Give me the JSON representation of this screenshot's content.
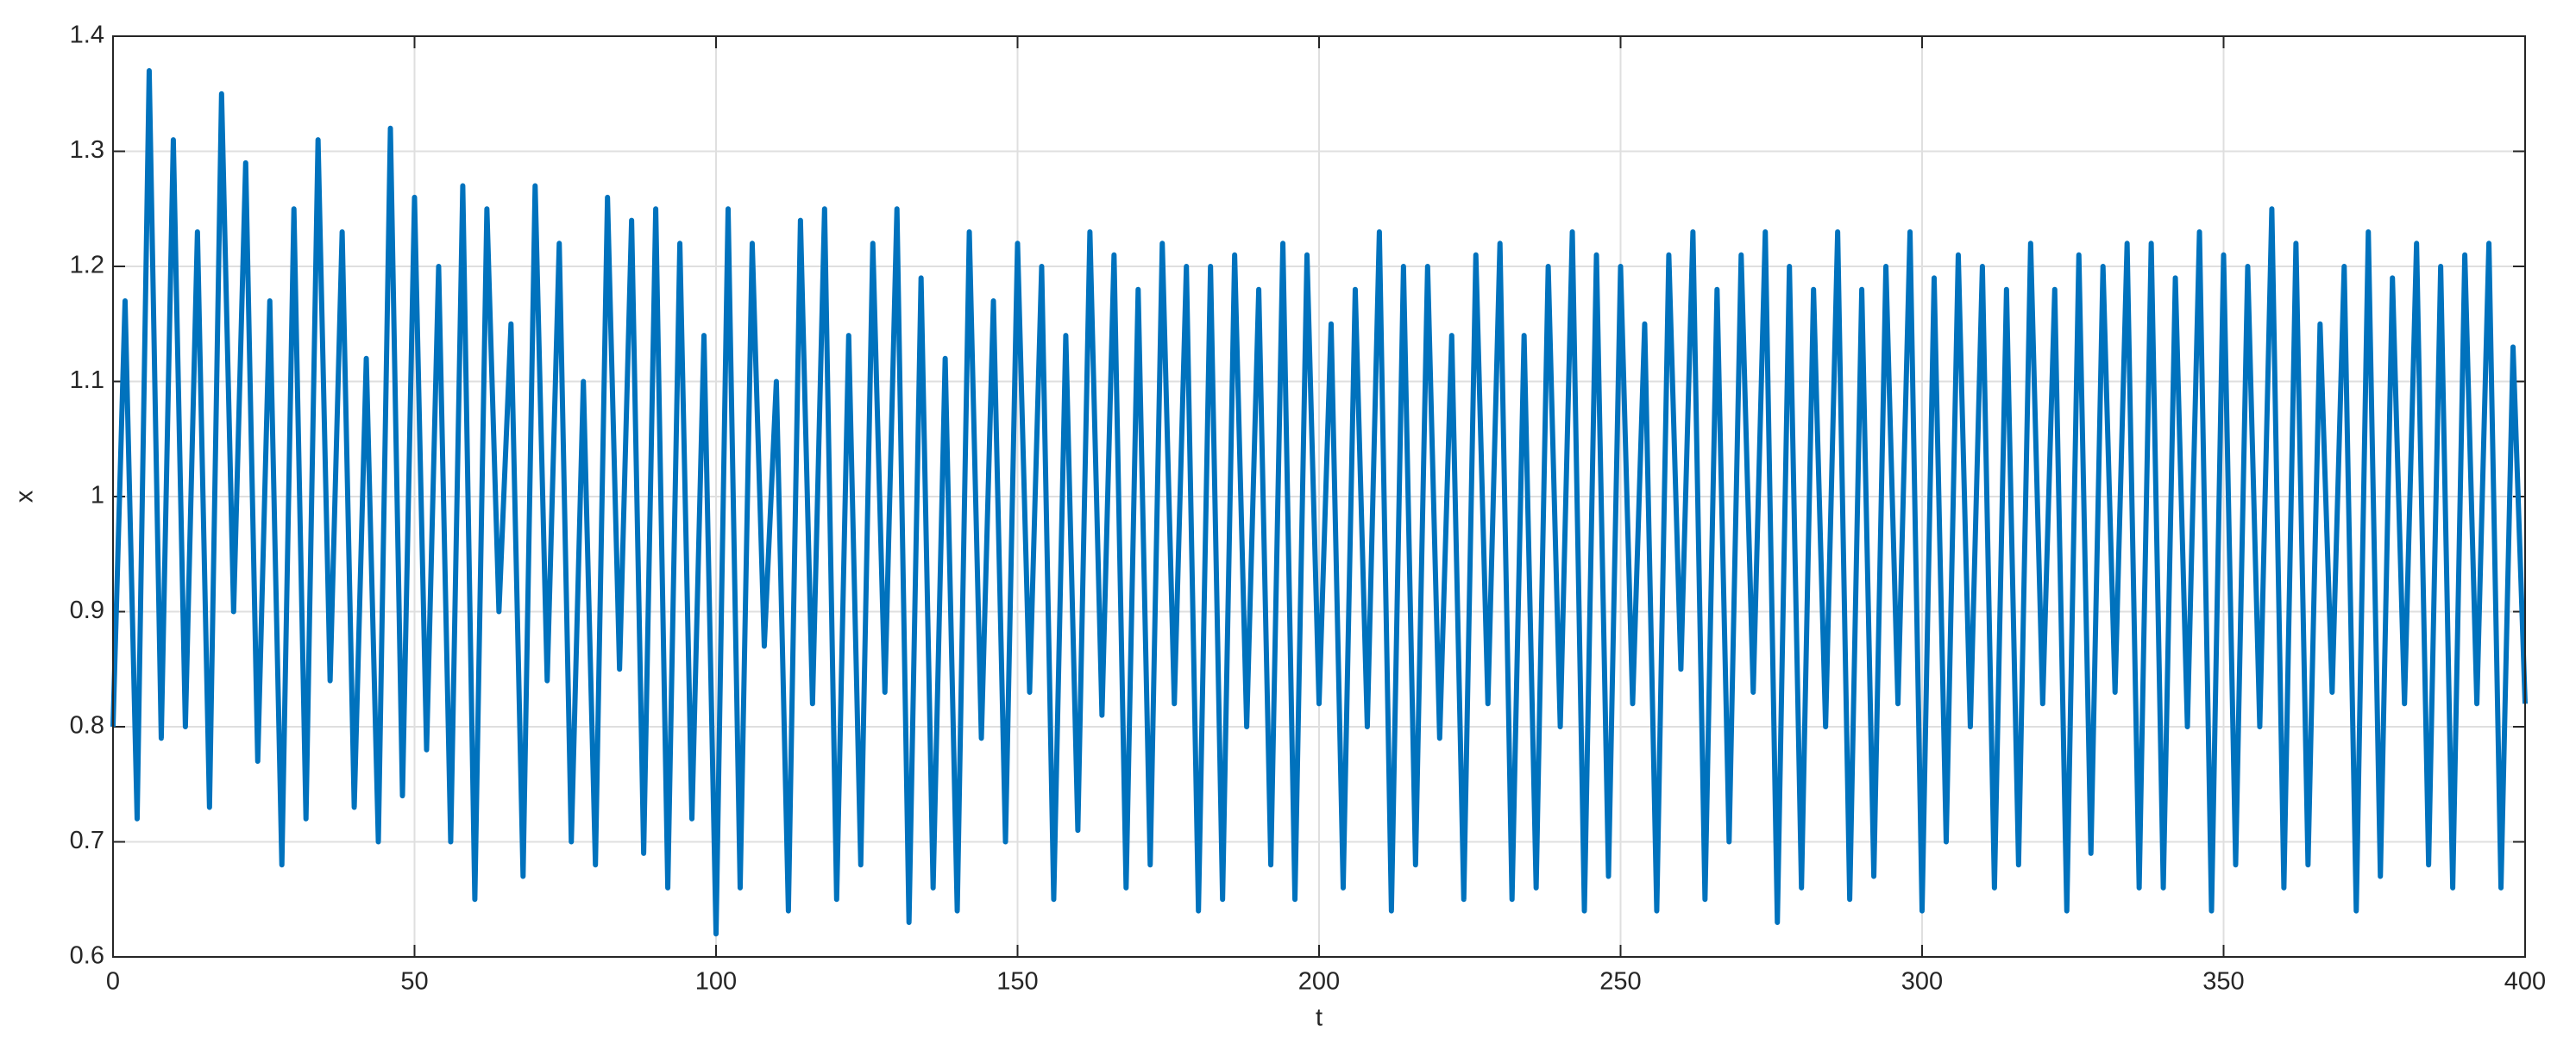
{
  "chart_data": {
    "type": "line",
    "x_label": "t",
    "y_label": "x",
    "x": [
      0,
      2,
      4,
      6,
      8,
      10,
      12,
      14,
      16,
      18,
      20,
      22,
      24,
      26,
      28,
      30,
      32,
      34,
      36,
      38,
      40,
      42,
      44,
      46,
      48,
      50,
      52,
      54,
      56,
      58,
      60,
      62,
      64,
      66,
      68,
      70,
      72,
      74,
      76,
      78,
      80,
      82,
      84,
      86,
      88,
      90,
      92,
      94,
      96,
      98,
      100,
      102,
      104,
      106,
      108,
      110,
      112,
      114,
      116,
      118,
      120,
      122,
      124,
      126,
      128,
      130,
      132,
      134,
      136,
      138,
      140,
      142,
      144,
      146,
      148,
      150,
      152,
      154,
      156,
      158,
      160,
      162,
      164,
      166,
      168,
      170,
      172,
      174,
      176,
      178,
      180,
      182,
      184,
      186,
      188,
      190,
      192,
      194,
      196,
      198,
      200,
      202,
      204,
      206,
      208,
      210,
      212,
      214,
      216,
      218,
      220,
      222,
      224,
      226,
      228,
      230,
      232,
      234,
      236,
      238,
      240,
      242,
      244,
      246,
      248,
      250,
      252,
      254,
      256,
      258,
      260,
      262,
      264,
      266,
      268,
      270,
      272,
      274,
      276,
      278,
      280,
      282,
      284,
      286,
      288,
      290,
      292,
      294,
      296,
      298,
      300,
      302,
      304,
      306,
      308,
      310,
      312,
      314,
      316,
      318,
      320,
      322,
      324,
      326,
      328,
      330,
      332,
      334,
      336,
      338,
      340,
      342,
      344,
      346,
      348,
      350,
      352,
      354,
      356,
      358,
      360,
      362,
      364,
      366,
      368,
      370,
      372,
      374,
      376,
      378,
      380,
      382,
      384,
      386,
      388,
      390,
      392,
      394,
      396,
      398,
      400
    ],
    "values": [
      0.8,
      1.17,
      0.72,
      1.37,
      0.79,
      1.31,
      0.8,
      1.23,
      0.73,
      1.35,
      0.9,
      1.29,
      0.77,
      1.17,
      0.68,
      1.25,
      0.72,
      1.31,
      0.84,
      1.23,
      0.73,
      1.12,
      0.7,
      1.32,
      0.74,
      1.26,
      0.78,
      1.2,
      0.7,
      1.27,
      0.65,
      1.25,
      0.9,
      1.15,
      0.67,
      1.27,
      0.84,
      1.22,
      0.7,
      1.1,
      0.68,
      1.26,
      0.85,
      1.24,
      0.69,
      1.25,
      0.66,
      1.22,
      0.72,
      1.14,
      0.62,
      1.25,
      0.66,
      1.22,
      0.87,
      1.1,
      0.64,
      1.24,
      0.82,
      1.25,
      0.65,
      1.14,
      0.68,
      1.22,
      0.83,
      1.25,
      0.63,
      1.19,
      0.66,
      1.12,
      0.64,
      1.23,
      0.79,
      1.17,
      0.7,
      1.22,
      0.83,
      1.2,
      0.65,
      1.14,
      0.71,
      1.23,
      0.81,
      1.21,
      0.66,
      1.18,
      0.68,
      1.22,
      0.82,
      1.2,
      0.64,
      1.2,
      0.65,
      1.21,
      0.8,
      1.18,
      0.68,
      1.22,
      0.65,
      1.21,
      0.82,
      1.15,
      0.66,
      1.18,
      0.8,
      1.23,
      0.64,
      1.2,
      0.68,
      1.2,
      0.79,
      1.14,
      0.65,
      1.21,
      0.82,
      1.22,
      0.65,
      1.14,
      0.66,
      1.2,
      0.8,
      1.23,
      0.64,
      1.21,
      0.67,
      1.2,
      0.82,
      1.15,
      0.64,
      1.21,
      0.85,
      1.23,
      0.65,
      1.18,
      0.7,
      1.21,
      0.83,
      1.23,
      0.63,
      1.2,
      0.66,
      1.18,
      0.8,
      1.23,
      0.65,
      1.18,
      0.67,
      1.2,
      0.82,
      1.23,
      0.64,
      1.19,
      0.7,
      1.21,
      0.8,
      1.2,
      0.66,
      1.18,
      0.68,
      1.22,
      0.82,
      1.18,
      0.64,
      1.21,
      0.69,
      1.2,
      0.83,
      1.22,
      0.66,
      1.22,
      0.66,
      1.19,
      0.8,
      1.23,
      0.64,
      1.21,
      0.68,
      1.2,
      0.8,
      1.25,
      0.66,
      1.22,
      0.68,
      1.15,
      0.83,
      1.2,
      0.64,
      1.23,
      0.67,
      1.19,
      0.82,
      1.22,
      0.68,
      1.2,
      0.66,
      1.21,
      0.82,
      1.22,
      0.66,
      1.13,
      0.82
    ],
    "color": "#0072bd",
    "xlim": [
      0,
      400
    ],
    "xticks": [
      0,
      50,
      100,
      150,
      200,
      250,
      300,
      350,
      400
    ],
    "ylim": [
      0.6,
      1.4
    ],
    "yticks": [
      0.6,
      0.7,
      0.8,
      0.9,
      1,
      1.1,
      1.2,
      1.3,
      1.4
    ],
    "grid": true
  }
}
